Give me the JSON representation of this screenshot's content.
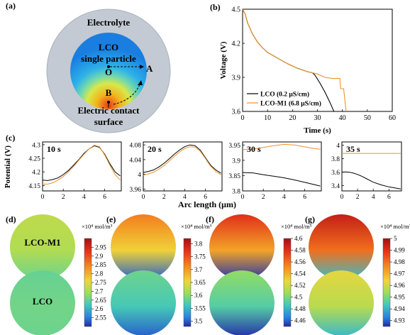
{
  "panel_labels": [
    "(a)",
    "(b)",
    "(c)",
    "(d)",
    "(e)",
    "(f)",
    "(g)"
  ],
  "schematic": {
    "electrolyte": "Electrolyte",
    "particle_line1": "LCO",
    "particle_line2": "single particle",
    "point_o": "O",
    "point_a": "A",
    "point_b": "B",
    "contact_line1": "Electric contact",
    "contact_line2": "surface",
    "colors": {
      "shell": "#c3cad3",
      "shell_edge": "#aab2bd",
      "inner_bg": "#ffffff"
    }
  },
  "colors": {
    "lco": "#000000",
    "lco_m1": "#e8952c"
  },
  "chart_data": [
    {
      "panel": "b",
      "type": "line",
      "xlabel": "Time (s)",
      "ylabel": "Voltage (V)",
      "xlim": [
        0,
        60
      ],
      "ylim": [
        3.6,
        4.5
      ],
      "xticks": [
        "0",
        "10",
        "20",
        "30",
        "40",
        "50",
        "60"
      ],
      "yticks": [
        "3.6",
        "3.9",
        "4.2",
        "4.5"
      ],
      "legend_position": "bottom-left",
      "series": [
        {
          "name": "LCO (0.2 μS/cm)",
          "color": "#000000",
          "x": [
            0,
            1,
            2,
            4,
            6,
            8,
            10,
            14,
            18,
            22,
            26,
            28,
            29,
            31,
            33,
            35,
            36,
            36.6
          ],
          "y": [
            4.5,
            4.46,
            4.38,
            4.28,
            4.21,
            4.16,
            4.12,
            4.07,
            4.02,
            3.98,
            3.95,
            3.94,
            3.92,
            3.85,
            3.77,
            3.68,
            3.63,
            3.6
          ]
        },
        {
          "name": "LCO-M1 (6.8 μS/cm)",
          "color": "#e8952c",
          "x": [
            0,
            1,
            2,
            4,
            6,
            8,
            10,
            14,
            18,
            22,
            26,
            30,
            33,
            36,
            38,
            39,
            39.3,
            40.5,
            41,
            41.5
          ],
          "y": [
            4.5,
            4.46,
            4.38,
            4.28,
            4.21,
            4.16,
            4.12,
            4.07,
            4.02,
            3.98,
            3.95,
            3.93,
            3.9,
            3.89,
            3.89,
            3.89,
            3.8,
            3.8,
            3.7,
            3.6
          ]
        }
      ]
    },
    {
      "panel": "c",
      "label": "10 s",
      "type": "line",
      "xlim": [
        0,
        7.6
      ],
      "ylim": [
        4.13,
        4.31
      ],
      "xticks": [
        "0",
        "2",
        "4",
        "6"
      ],
      "yticks": [
        "4.15",
        "4.2",
        "4.25",
        "4.3"
      ],
      "ylabel": "Potential (V)",
      "series": [
        {
          "name": "LCO",
          "color": "#000000",
          "x": [
            0,
            0.5,
            1,
            1.5,
            2,
            2.5,
            3,
            3.5,
            4,
            4.5,
            5,
            5.5,
            6,
            6.5,
            7,
            7.5
          ],
          "y": [
            4.17,
            4.168,
            4.172,
            4.178,
            4.19,
            4.205,
            4.225,
            4.245,
            4.268,
            4.285,
            4.296,
            4.29,
            4.265,
            4.23,
            4.2,
            4.185
          ]
        },
        {
          "name": "LCO-M1",
          "color": "#e8952c",
          "x": [
            0,
            0.5,
            1,
            1.5,
            2,
            2.5,
            3,
            3.5,
            4,
            4.5,
            5,
            5.5,
            6,
            6.5,
            7,
            7.5
          ],
          "y": [
            4.155,
            4.155,
            4.16,
            4.17,
            4.183,
            4.2,
            4.22,
            4.243,
            4.265,
            4.285,
            4.298,
            4.292,
            4.262,
            4.225,
            4.19,
            4.17
          ]
        }
      ]
    },
    {
      "panel": "c",
      "label": "20 s",
      "type": "line",
      "xlim": [
        0,
        7.6
      ],
      "ylim": [
        3.955,
        4.088
      ],
      "xticks": [
        "0",
        "2",
        "4",
        "6"
      ],
      "yticks": [
        "3.96",
        "4",
        "4.04",
        "4.08"
      ],
      "series": [
        {
          "name": "LCO",
          "color": "#000000",
          "x": [
            0,
            0.5,
            1,
            1.5,
            2,
            2.5,
            3,
            3.5,
            4,
            4.5,
            5,
            5.5,
            6,
            6.5,
            7,
            7.5
          ],
          "y": [
            4.005,
            4.008,
            4.012,
            4.02,
            4.03,
            4.042,
            4.055,
            4.066,
            4.075,
            4.08,
            4.078,
            4.066,
            4.045,
            4.025,
            4.012,
            4.003
          ]
        },
        {
          "name": "LCO-M1",
          "color": "#e8952c",
          "x": [
            0,
            0.5,
            1,
            1.5,
            2,
            2.5,
            3,
            3.5,
            4,
            4.5,
            5,
            5.5,
            6,
            6.5,
            7,
            7.5
          ],
          "y": [
            3.998,
            4.001,
            4.006,
            4.014,
            4.024,
            4.036,
            4.049,
            4.061,
            4.07,
            4.075,
            4.074,
            4.063,
            4.043,
            4.022,
            4.008,
            3.999
          ]
        }
      ]
    },
    {
      "panel": "c",
      "label": "30 s",
      "type": "line",
      "xlim": [
        0,
        7.6
      ],
      "ylim": [
        3.8,
        3.96
      ],
      "xticks": [
        "0",
        "2",
        "4",
        "6"
      ],
      "yticks": [
        "3.8",
        "3.85",
        "3.9",
        "3.95"
      ],
      "series": [
        {
          "name": "LCO",
          "color": "#000000",
          "x": [
            0,
            1,
            2,
            3,
            4,
            5,
            6,
            7,
            7.5
          ],
          "y": [
            3.86,
            3.859,
            3.853,
            3.848,
            3.843,
            3.836,
            3.828,
            3.82,
            3.816
          ]
        },
        {
          "name": "LCO-M1",
          "color": "#e8952c",
          "x": [
            0,
            1,
            2,
            3,
            4,
            5,
            6,
            7,
            7.5
          ],
          "y": [
            3.935,
            3.937,
            3.942,
            3.948,
            3.952,
            3.95,
            3.944,
            3.938,
            3.936
          ]
        }
      ]
    },
    {
      "panel": "c",
      "label": "35 s",
      "type": "line",
      "xlim": [
        0,
        7.6
      ],
      "ylim": [
        3.32,
        4.05
      ],
      "xticks": [
        "0",
        "2",
        "4",
        "6"
      ],
      "yticks": [
        "3.4",
        "3.6",
        "3.8",
        "4"
      ],
      "series": [
        {
          "name": "LCO",
          "color": "#000000",
          "x": [
            0,
            0.5,
            1,
            1.5,
            2,
            2.5,
            3,
            4,
            5,
            6,
            7,
            7.5
          ],
          "y": [
            3.6,
            3.602,
            3.598,
            3.585,
            3.565,
            3.54,
            3.51,
            3.45,
            3.41,
            3.38,
            3.36,
            3.35
          ]
        },
        {
          "name": "LCO-M1",
          "color": "#e8952c",
          "x": [
            0,
            2,
            4,
            6,
            7.5
          ],
          "y": [
            3.88,
            3.88,
            3.88,
            3.88,
            3.88
          ]
        }
      ]
    }
  ],
  "c_common": {
    "xlabel": "Arc length (μm)"
  },
  "heatmaps": {
    "row_labels": [
      "LCO-M1",
      "LCO"
    ],
    "panels": [
      {
        "panel": "d",
        "unit": "×10⁴ mol/m³",
        "min": 2.5,
        "max": 3.0,
        "ticks": [
          "2.95",
          "2.9",
          "2.85",
          "2.8",
          "2.75",
          "2.7",
          "2.65",
          "2.6",
          "2.55"
        ],
        "top_value": 2.72,
        "bottom_value": 2.68,
        "bottom_top_value": 2.68
      },
      {
        "panel": "e",
        "unit": "×10⁴ mol/m³",
        "min": 3.48,
        "max": 3.82,
        "ticks": [
          "3.8",
          "3.75",
          "3.7",
          "3.65",
          "3.6",
          "3.55",
          "3.5"
        ],
        "top_value": 3.72,
        "bottom_value": 3.52
      },
      {
        "panel": "f",
        "unit": "×10⁴ mol/m³",
        "min": 4.45,
        "max": 4.6,
        "ticks": [
          "4.6",
          "4.58",
          "4.56",
          "4.54",
          "4.52",
          "4.5",
          "4.48",
          "4.46"
        ],
        "top_value": 4.58,
        "bottom_value": 4.46
      },
      {
        "panel": "g",
        "unit": "×10⁴ mol/m³",
        "min": 4.925,
        "max": 5.0,
        "ticks": [
          "5",
          "4.99",
          "4.98",
          "4.97",
          "4.96",
          "4.95",
          "4.94",
          "4.93"
        ],
        "top_value": 4.995,
        "bottom_value": 4.945
      }
    ]
  }
}
